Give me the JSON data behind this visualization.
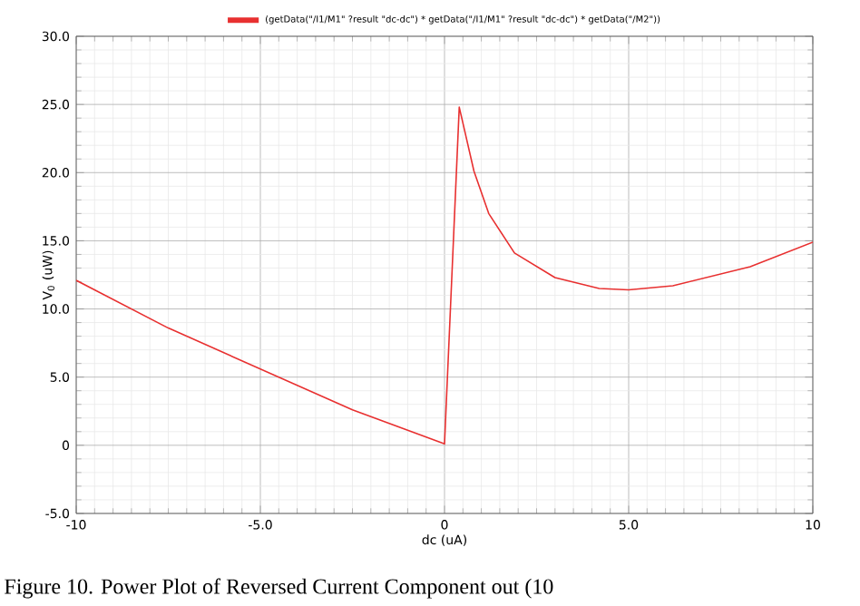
{
  "chart_data": {
    "type": "line",
    "xlabel": "dc (uA)",
    "ylabel": "V$_{0}$ (uW)",
    "annotations": [
      "Figure 10. Power Plot of Reversed Current Component out (10"
    ],
    "series": [
      {
        "name": "(getData(\"/I1/M1\" ?result \"dc-dc\") * getData(\"/I1/M1\" ?result \"dc-dc\") * getData(\"/M2\"))",
        "color": "#e83030",
        "x": [
          -10,
          -7.5,
          -5,
          -2.5,
          0,
          0.4,
          0.8,
          1.2,
          1.9,
          3.0,
          4.2,
          5.0,
          6.2,
          8.3,
          10
        ],
        "values": [
          12.1,
          8.6,
          5.6,
          2.6,
          0.1,
          24.8,
          20.1,
          17.0,
          14.1,
          12.3,
          11.5,
          11.4,
          11.7,
          13.1,
          14.9
        ]
      }
    ],
    "xlim": [
      -10,
      10
    ],
    "ylim": [
      -5,
      30
    ],
    "xticks": [
      -10,
      {
        "value": -5,
        "label": "-5.0"
      },
      0,
      {
        "value": 5,
        "label": "5.0"
      },
      10
    ],
    "yticks": [
      {
        "value": -5,
        "label": "-5.0"
      },
      0,
      {
        "value": 5,
        "label": "5.0"
      },
      {
        "value": 10,
        "label": "10.0"
      },
      {
        "value": 15,
        "label": "15.0"
      },
      {
        "value": 20,
        "label": "20.0"
      },
      {
        "value": 25,
        "label": "25.0"
      },
      {
        "value": 30,
        "label": "30.0"
      }
    ],
    "grid": true,
    "legend": "top",
    "marker": "none",
    "line_style": "solid"
  }
}
